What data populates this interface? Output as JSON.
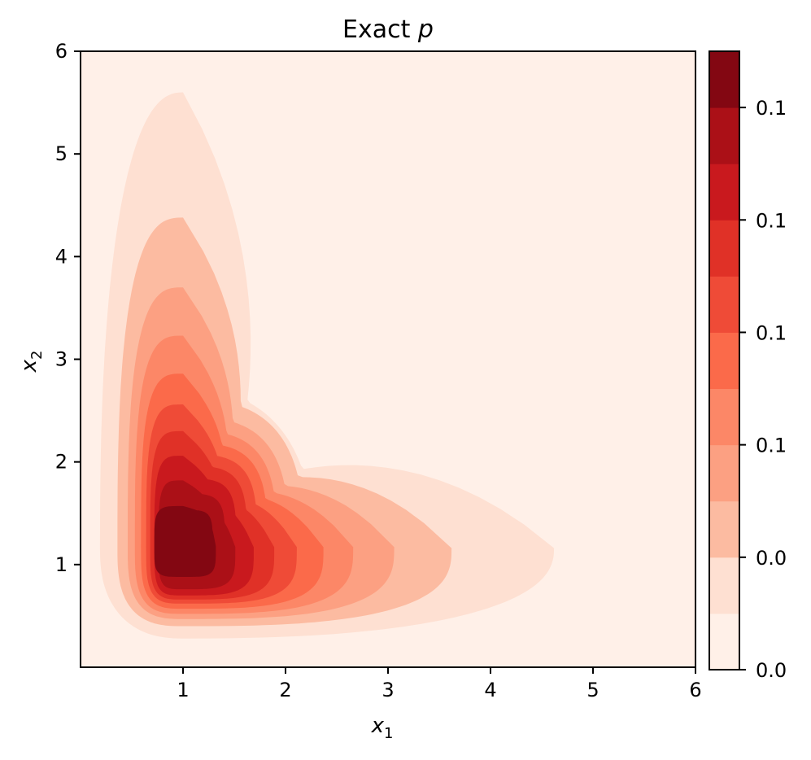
{
  "chart_data": {
    "type": "contour",
    "title": {
      "prefix": "Exact ",
      "var": "p"
    },
    "xlabel": {
      "var": "x",
      "sub": "1"
    },
    "ylabel": {
      "var": "x",
      "sub": "2"
    },
    "xlim": [
      0,
      6
    ],
    "ylim": [
      0,
      6
    ],
    "x_ticks": [
      1,
      2,
      3,
      4,
      5,
      6
    ],
    "y_ticks": [
      1,
      2,
      3,
      4,
      5,
      6
    ],
    "peak": {
      "x": 1.0,
      "y": 1.2
    },
    "levels": 11,
    "colors": [
      "#fff0e8",
      "#fee0d2",
      "#fcbba1",
      "#fca082",
      "#fc8767",
      "#fb6a4a",
      "#ef4b37",
      "#e03127",
      "#c9191e",
      "#ab1017",
      "#830712"
    ],
    "colorbar_ticks": [
      "0.0",
      "0.0",
      "0.1",
      "0.1",
      "0.1",
      "0.1"
    ],
    "contours": [
      {
        "level": 1,
        "top": 5.6,
        "right_x": 4.62,
        "right_y": 1.16,
        "left_x": 0.19,
        "bottom": 0.28,
        "sharp": 1.2,
        "pinch": 0.35
      },
      {
        "level": 2,
        "top": 4.38,
        "right_x": 3.62,
        "right_y": 1.16,
        "left_x": 0.36,
        "bottom": 0.4,
        "sharp": 1.4,
        "pinch": 0.45
      },
      {
        "level": 3,
        "top": 3.7,
        "right_x": 3.06,
        "right_y": 1.17,
        "left_x": 0.46,
        "bottom": 0.47,
        "sharp": 1.5,
        "pinch": 0.5
      },
      {
        "level": 4,
        "top": 3.23,
        "right_x": 2.66,
        "right_y": 1.17,
        "left_x": 0.53,
        "bottom": 0.52,
        "sharp": 1.6,
        "pinch": 0.55
      },
      {
        "level": 5,
        "top": 2.86,
        "right_x": 2.37,
        "right_y": 1.17,
        "left_x": 0.59,
        "bottom": 0.57,
        "sharp": 1.7,
        "pinch": 0.6
      },
      {
        "level": 6,
        "top": 2.56,
        "right_x": 2.11,
        "right_y": 1.17,
        "left_x": 0.64,
        "bottom": 0.62,
        "sharp": 1.8,
        "pinch": 0.65
      },
      {
        "level": 7,
        "top": 2.3,
        "right_x": 1.89,
        "right_y": 1.17,
        "left_x": 0.68,
        "bottom": 0.66,
        "sharp": 1.9,
        "pinch": 0.7
      },
      {
        "level": 8,
        "top": 2.06,
        "right_x": 1.69,
        "right_y": 1.17,
        "left_x": 0.72,
        "bottom": 0.7,
        "sharp": 2.0,
        "pinch": 0.75
      },
      {
        "level": 9,
        "top": 1.82,
        "right_x": 1.51,
        "right_y": 1.17,
        "left_x": 0.76,
        "bottom": 0.76,
        "sharp": 2.1,
        "pinch": 0.8
      },
      {
        "level": 10,
        "top": 1.57,
        "right_x": 1.32,
        "right_y": 1.18,
        "left_x": 0.72,
        "bottom": 0.88,
        "sharp": 2.3,
        "pinch": 0.9
      }
    ]
  }
}
